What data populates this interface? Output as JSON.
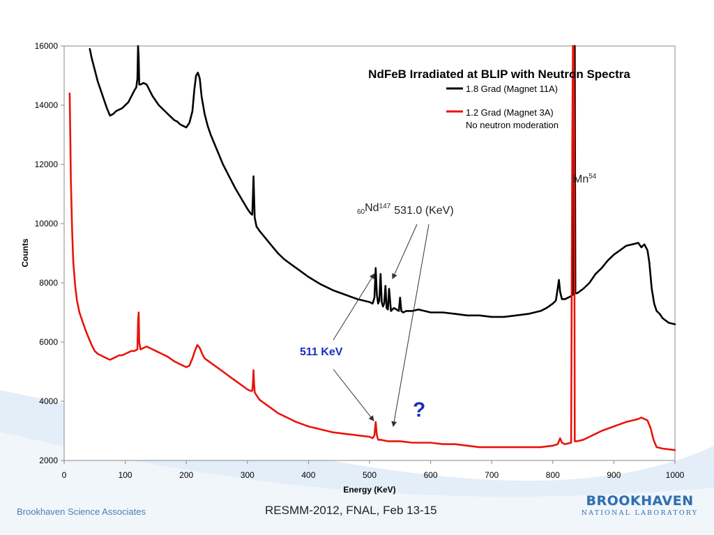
{
  "footer": {
    "left": "Brookhaven Science Associates",
    "center": "RESMM-2012, FNAL, Feb 13-15",
    "logo_top": "BROOKHAVEN",
    "logo_bottom": "NATIONAL LABORATORY"
  },
  "colors": {
    "series_black": "#000000",
    "series_red": "#e8140c",
    "label_511": "#1a2fc0",
    "question": "#1a2fc0",
    "wave": "#dce8f4"
  },
  "chart_data": {
    "type": "line",
    "title": "NdFeB Irradiated at BLIP with Neutron Spectra",
    "xlabel": "Energy (KeV)",
    "ylabel": "Counts",
    "xlim": [
      0,
      1000
    ],
    "ylim": [
      2000,
      16000
    ],
    "xticks": [
      "0",
      "100",
      "200",
      "300",
      "400",
      "500",
      "600",
      "700",
      "800",
      "900",
      "1000"
    ],
    "yticks": [
      "2000",
      "4000",
      "6000",
      "8000",
      "10000",
      "12000",
      "14000",
      "16000"
    ],
    "grid": false,
    "legend_position": "top-right",
    "legend": {
      "entry1": "1.8 Grad (Magnet 11A)",
      "entry2_line1": "1.2 Grad (Magnet 3A)",
      "entry2_line2": "No neutron moderation"
    },
    "series": [
      {
        "name": "1.8 Grad (Magnet 11A)",
        "color": "#000000",
        "x": [
          42,
          45,
          50,
          55,
          60,
          65,
          70,
          75,
          80,
          85,
          90,
          95,
          100,
          105,
          110,
          115,
          118,
          120,
          121,
          122,
          123,
          125,
          130,
          135,
          140,
          145,
          150,
          155,
          160,
          165,
          170,
          175,
          180,
          185,
          190,
          195,
          200,
          205,
          210,
          213,
          216,
          219,
          222,
          225,
          230,
          235,
          240,
          250,
          260,
          270,
          280,
          290,
          300,
          305,
          308,
          309,
          310,
          311,
          312,
          315,
          320,
          330,
          340,
          350,
          360,
          370,
          380,
          390,
          400,
          420,
          440,
          460,
          480,
          500,
          505,
          508,
          510,
          512,
          514,
          516,
          518,
          520,
          522,
          524,
          526,
          528,
          530,
          532,
          535,
          540,
          548,
          550,
          552,
          555,
          560,
          570,
          580,
          590,
          600,
          620,
          640,
          660,
          680,
          700,
          720,
          740,
          760,
          780,
          790,
          800,
          805,
          808,
          810,
          812,
          815,
          820,
          825,
          830,
          833,
          834,
          835,
          836,
          837,
          840,
          850,
          860,
          870,
          880,
          890,
          900,
          910,
          920,
          930,
          940,
          945,
          950,
          955,
          958,
          962,
          966,
          970,
          975,
          980,
          990,
          1000
        ],
        "y": [
          15900,
          15600,
          15200,
          14800,
          14500,
          14200,
          13900,
          13650,
          13700,
          13800,
          13850,
          13900,
          14000,
          14100,
          14300,
          14500,
          14600,
          14900,
          16000,
          15600,
          14700,
          14700,
          14750,
          14700,
          14500,
          14300,
          14150,
          14000,
          13900,
          13800,
          13700,
          13600,
          13500,
          13450,
          13350,
          13300,
          13250,
          13400,
          13800,
          14500,
          15000,
          15100,
          14900,
          14300,
          13700,
          13300,
          13000,
          12500,
          12000,
          11600,
          11200,
          10850,
          10500,
          10350,
          10300,
          10900,
          11600,
          10900,
          10200,
          9900,
          9750,
          9500,
          9250,
          9000,
          8800,
          8650,
          8500,
          8350,
          8200,
          7950,
          7750,
          7600,
          7450,
          7350,
          7300,
          7500,
          8500,
          7600,
          7300,
          7400,
          8300,
          7350,
          7200,
          7300,
          7900,
          7150,
          7100,
          7800,
          7050,
          7150,
          7050,
          7500,
          7050,
          7000,
          7050,
          7050,
          7100,
          7050,
          7000,
          7000,
          6950,
          6900,
          6900,
          6850,
          6850,
          6900,
          6950,
          7050,
          7150,
          7300,
          7400,
          7800,
          8100,
          7700,
          7450,
          7450,
          7500,
          7550,
          7600,
          16000,
          16000,
          16000,
          7650,
          7650,
          7800,
          8000,
          8300,
          8500,
          8750,
          8950,
          9100,
          9250,
          9300,
          9350,
          9200,
          9300,
          9100,
          8700,
          7800,
          7300,
          7050,
          6950,
          6800,
          6650,
          6600
        ]
      },
      {
        "name": "1.2 Grad (Magnet 3A)",
        "color": "#e8140c",
        "x": [
          9,
          10,
          11,
          13,
          15,
          18,
          21,
          25,
          30,
          35,
          40,
          45,
          50,
          55,
          60,
          65,
          70,
          75,
          80,
          85,
          90,
          95,
          100,
          105,
          110,
          115,
          120,
          121,
          122,
          123,
          125,
          130,
          135,
          140,
          145,
          150,
          155,
          160,
          170,
          180,
          190,
          200,
          205,
          210,
          214,
          218,
          222,
          226,
          230,
          240,
          250,
          260,
          270,
          280,
          290,
          300,
          305,
          308,
          309,
          310,
          311,
          312,
          315,
          320,
          330,
          340,
          350,
          360,
          370,
          380,
          400,
          420,
          440,
          460,
          480,
          500,
          505,
          508,
          510,
          512,
          514,
          518,
          530,
          550,
          570,
          600,
          620,
          640,
          660,
          680,
          700,
          720,
          740,
          760,
          780,
          800,
          808,
          810,
          812,
          815,
          820,
          830,
          832,
          833,
          834,
          835,
          836,
          838,
          840,
          850,
          860,
          870,
          880,
          900,
          920,
          940,
          945,
          950,
          955,
          960,
          965,
          970,
          980,
          1000
        ],
        "y": [
          14400,
          13000,
          11500,
          9800,
          8700,
          7900,
          7400,
          7000,
          6700,
          6400,
          6150,
          5900,
          5700,
          5600,
          5550,
          5500,
          5450,
          5400,
          5450,
          5500,
          5550,
          5550,
          5600,
          5650,
          5700,
          5700,
          5750,
          6700,
          7000,
          6000,
          5750,
          5800,
          5850,
          5800,
          5750,
          5700,
          5650,
          5600,
          5500,
          5350,
          5250,
          5150,
          5200,
          5450,
          5700,
          5900,
          5800,
          5600,
          5450,
          5300,
          5150,
          5000,
          4850,
          4700,
          4550,
          4400,
          4350,
          4350,
          4600,
          5050,
          4600,
          4300,
          4200,
          4050,
          3900,
          3750,
          3600,
          3500,
          3400,
          3300,
          3150,
          3050,
          2950,
          2900,
          2850,
          2800,
          2750,
          2850,
          3300,
          2850,
          2700,
          2700,
          2650,
          2650,
          2600,
          2600,
          2550,
          2550,
          2500,
          2450,
          2450,
          2450,
          2450,
          2450,
          2450,
          2500,
          2550,
          2650,
          2750,
          2600,
          2550,
          2600,
          13000,
          16000,
          16000,
          13000,
          2650,
          2650,
          2650,
          2700,
          2800,
          2900,
          3000,
          3150,
          3300,
          3400,
          3450,
          3400,
          3350,
          3100,
          2700,
          2450,
          2400,
          2350
        ]
      }
    ],
    "annotations": [
      {
        "type": "isotope",
        "sub": "60",
        "element": "Nd",
        "sup": "147",
        "energy": "531.0 (KeV)"
      },
      {
        "type": "isotope",
        "element": "Mn",
        "sup": "54"
      },
      {
        "type": "label",
        "text": "511 KeV"
      },
      {
        "type": "label",
        "text": "?"
      }
    ]
  }
}
